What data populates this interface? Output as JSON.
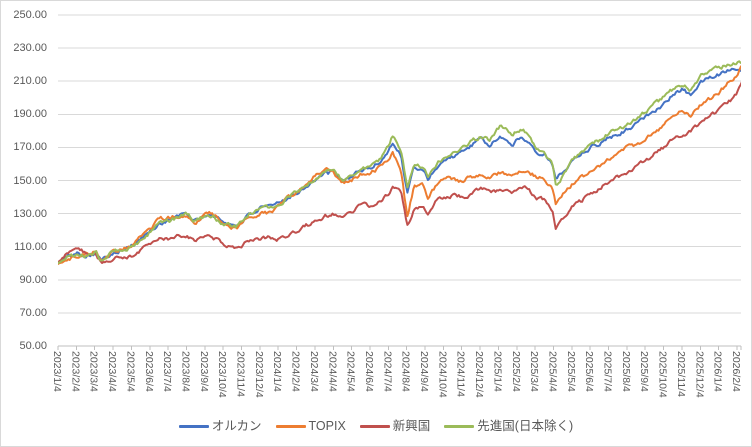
{
  "chart_data": {
    "type": "line",
    "title": "",
    "xlabel": "",
    "ylabel": "",
    "grid": true,
    "legend_position": "bottom",
    "y_axis": {
      "min": 50,
      "max": 250,
      "step": 20,
      "tick_labels": [
        "250.00",
        "230.00",
        "210.00",
        "190.00",
        "170.00",
        "150.00",
        "130.00",
        "110.00",
        "90.00",
        "70.00",
        "50.00"
      ]
    },
    "x_axis": {
      "label_rotation": "vertical",
      "tick_labels": [
        "2023/1/4",
        "2023/2/4",
        "2023/3/4",
        "2023/4/4",
        "2023/5/4",
        "2023/6/4",
        "2023/7/4",
        "2023/8/4",
        "2023/9/4",
        "2023/10/4",
        "2023/11/4",
        "2023/12/4",
        "2024/1/4",
        "2024/2/4",
        "2024/3/4",
        "2024/4/4",
        "2024/5/4",
        "2024/6/4",
        "2024/7/4",
        "2024/8/4",
        "2024/9/4",
        "2024/10/4",
        "2024/11/4",
        "2024/12/4",
        "2025/1/4",
        "2025/2/4",
        "2025/3/4",
        "2025/4/4",
        "2025/5/4",
        "2025/6/4",
        "2025/7/4",
        "2025/8/4",
        "2025/9/4",
        "2025/10/4",
        "2025/11/4",
        "2025/12/4",
        "2026/1/4",
        "2026/2/4"
      ]
    },
    "anchor_dates": [
      "2023-01-04",
      "2023-01-20",
      "2023-02-06",
      "2023-02-20",
      "2023-03-06",
      "2023-03-16",
      "2023-04-04",
      "2023-04-20",
      "2023-05-08",
      "2023-05-22",
      "2023-06-05",
      "2023-06-19",
      "2023-07-04",
      "2023-07-20",
      "2023-08-04",
      "2023-08-18",
      "2023-09-04",
      "2023-09-15",
      "2023-10-04",
      "2023-10-26",
      "2023-11-06",
      "2023-11-20",
      "2023-12-04",
      "2023-12-18",
      "2024-01-04",
      "2024-01-22",
      "2024-02-05",
      "2024-02-22",
      "2024-03-07",
      "2024-03-22",
      "2024-04-04",
      "2024-04-19",
      "2024-05-07",
      "2024-05-20",
      "2024-06-04",
      "2024-06-20",
      "2024-07-04",
      "2024-07-11",
      "2024-07-25",
      "2024-08-05",
      "2024-08-16",
      "2024-09-02",
      "2024-09-09",
      "2024-09-27",
      "2024-10-15",
      "2024-11-01",
      "2024-11-15",
      "2024-12-05",
      "2024-12-20",
      "2025-01-08",
      "2025-01-27",
      "2025-02-10",
      "2025-02-21",
      "2025-03-06",
      "2025-03-20",
      "2025-04-02",
      "2025-04-08",
      "2025-04-22",
      "2025-05-07",
      "2025-05-21",
      "2025-06-04",
      "2025-06-20",
      "2025-07-04",
      "2025-07-22",
      "2025-08-05",
      "2025-08-20",
      "2025-09-04",
      "2025-09-19",
      "2025-10-06",
      "2025-10-21",
      "2025-11-05",
      "2025-11-19",
      "2025-12-04",
      "2025-12-19",
      "2026-01-07",
      "2026-01-21",
      "2026-02-04",
      "2026-02-13"
    ],
    "series": [
      {
        "name": "オルカン",
        "color": "#4472C4",
        "values": [
          100,
          104,
          106,
          105,
          106.5,
          101.5,
          107,
          108.5,
          111,
          115.5,
          119,
          124,
          126,
          128,
          130,
          125.5,
          128.5,
          129.5,
          125,
          122.5,
          126,
          130,
          133,
          133.5,
          136,
          140.5,
          142.5,
          147.5,
          151,
          154,
          155,
          149.5,
          153.5,
          156,
          157.5,
          161,
          168,
          173.5,
          165,
          142.5,
          157.5,
          156.5,
          151,
          160,
          164,
          166,
          170,
          174.5,
          171.5,
          176,
          172,
          176,
          174.5,
          168,
          166,
          160,
          150,
          156.5,
          163,
          167,
          170,
          172.5,
          176,
          178.5,
          181.5,
          184,
          188.5,
          192.5,
          197,
          202,
          205,
          201.5,
          209,
          212,
          214.5,
          217.5,
          218.5,
          218
        ]
      },
      {
        "name": "TOPIX",
        "color": "#ED7D31",
        "values": [
          99.5,
          102.5,
          105,
          106,
          107,
          100.5,
          106.5,
          108.5,
          112,
          117,
          120.5,
          126,
          127.5,
          128.5,
          129.5,
          125.5,
          129,
          130.5,
          124.5,
          121,
          124.5,
          128,
          131,
          130.5,
          134,
          140.5,
          142.5,
          148.5,
          153,
          156,
          155.5,
          148.5,
          151,
          153.5,
          154.5,
          157.5,
          163.5,
          167.5,
          157,
          127.5,
          146,
          146.5,
          139,
          149.5,
          151.5,
          149.5,
          151.5,
          154,
          152.5,
          154.5,
          152,
          155.5,
          156,
          152.5,
          151.5,
          146,
          136,
          142.5,
          148.5,
          152,
          155,
          158,
          163,
          167,
          170,
          171.5,
          174.5,
          179,
          183.5,
          190,
          193.5,
          189.5,
          195.5,
          199,
          204,
          209.5,
          213,
          220
        ]
      },
      {
        "name": "新興国",
        "color": "#C0504D",
        "values": [
          100.5,
          105.5,
          107.5,
          106.5,
          106,
          99.5,
          103.5,
          104,
          105,
          108.5,
          110.5,
          114,
          114.5,
          117,
          117.5,
          112.5,
          116,
          116.5,
          111.5,
          109,
          111.5,
          113,
          114.5,
          115,
          115,
          117.5,
          119.5,
          123,
          126,
          128.5,
          130,
          127.5,
          132,
          134.5,
          134.5,
          137.5,
          141.5,
          146,
          142,
          122,
          133,
          133.5,
          128.5,
          140,
          141,
          140.5,
          141,
          145,
          142.5,
          144,
          142,
          145.5,
          145,
          139.5,
          138.5,
          132.5,
          121.5,
          129,
          135,
          138,
          141.5,
          145,
          149.5,
          152.5,
          155,
          158,
          161.5,
          166,
          170.5,
          175,
          178,
          179.5,
          184.5,
          188.5,
          193,
          197.5,
          202,
          209
        ]
      },
      {
        "name": "先進国(日本除く)",
        "color": "#9BBB59",
        "values": [
          100,
          104,
          106,
          105,
          106.5,
          101,
          107,
          108.5,
          111,
          115,
          119,
          123.5,
          125.5,
          127.5,
          130,
          125.5,
          128,
          128.5,
          124.5,
          121.5,
          126,
          130,
          133,
          133.5,
          136,
          140.5,
          142.5,
          147.5,
          151.5,
          154.5,
          156,
          150.5,
          154.5,
          157,
          158.5,
          162.5,
          170,
          177,
          167.5,
          145,
          159.5,
          158.5,
          153,
          162,
          166,
          168,
          172.5,
          177,
          174,
          183,
          178,
          181,
          179,
          170,
          167.5,
          160,
          146.5,
          154.5,
          162.5,
          167,
          171.5,
          174.5,
          178.5,
          181.5,
          184.5,
          187,
          191.5,
          196,
          200.5,
          205.5,
          208.5,
          204.5,
          213,
          216,
          218.5,
          220.5,
          221.5,
          222
        ]
      }
    ],
    "colors": {
      "gridline": "#D9D9D9",
      "axis_line": "#BFBFBF",
      "tick_label": "#595959",
      "background": "#FFFFFF",
      "border": "#D9D9D9"
    }
  }
}
